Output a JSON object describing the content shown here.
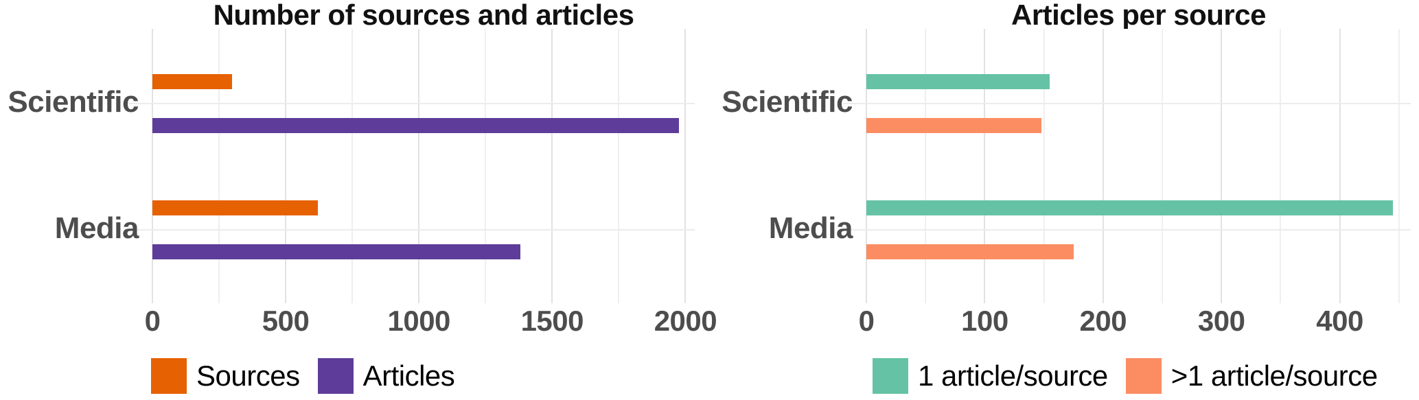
{
  "styles": {
    "background": "#FFFFFF",
    "grid_major": "#E2E2E2",
    "grid_minor": "#EFEFEF",
    "grid_category": "#ECECEC",
    "axis_text_color": "#4D4D4D",
    "title_color": "#111111",
    "legend_text_color": "#000000"
  },
  "chart_data": [
    {
      "type": "bar",
      "orientation": "horizontal",
      "title": "Number of sources and articles",
      "categories": [
        "Scientific",
        "Media"
      ],
      "series": [
        {
          "name": "Sources",
          "color": "#E66101",
          "values": [
            300,
            620
          ]
        },
        {
          "name": "Articles",
          "color": "#5E3C99",
          "values": [
            1975,
            1380
          ]
        }
      ],
      "x_ticks": [
        0,
        500,
        1000,
        1500,
        2000
      ],
      "x_minor_step": 250,
      "xlim": [
        0,
        2035
      ],
      "grid": true,
      "legend_position": "bottom",
      "legend": [
        "Sources",
        "Articles"
      ]
    },
    {
      "type": "bar",
      "orientation": "horizontal",
      "title": "Articles per source",
      "categories": [
        "Scientific",
        "Media"
      ],
      "series": [
        {
          "name": "1 article/source",
          "color": "#66C2A5",
          "values": [
            155,
            445
          ]
        },
        {
          "name": ">1 article/source",
          "color": "#FC8D62",
          "values": [
            148,
            175
          ]
        }
      ],
      "x_ticks": [
        0,
        100,
        200,
        300,
        400
      ],
      "x_minor_step": 50,
      "xlim": [
        0,
        460
      ],
      "grid": true,
      "legend_position": "bottom",
      "legend": [
        "1 article/source",
        ">1 article/source"
      ]
    }
  ]
}
